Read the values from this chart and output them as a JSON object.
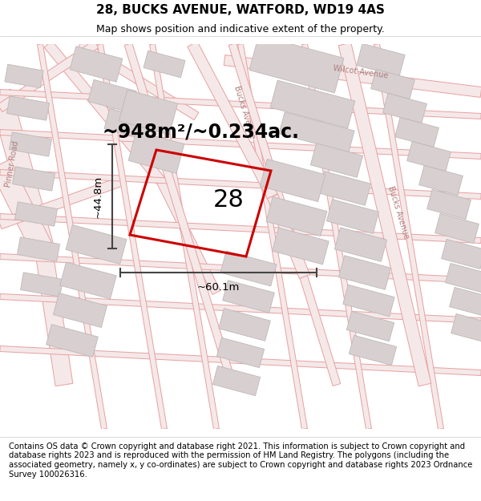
{
  "title": "28, BUCKS AVENUE, WATFORD, WD19 4AS",
  "subtitle": "Map shows position and indicative extent of the property.",
  "area_label": "~948m²/~0.234ac.",
  "number_label": "28",
  "dim_width": "~60.1m",
  "dim_height": "~44.8m",
  "footer": "Contains OS data © Crown copyright and database right 2021. This information is subject to Crown copyright and database rights 2023 and is reproduced with the permission of HM Land Registry. The polygons (including the associated geometry, namely x, y co-ordinates) are subject to Crown copyright and database rights 2023 Ordnance Survey 100026316.",
  "road_line_color": "#e8a0a0",
  "road_fill_color": "#f5e8e8",
  "building_color": "#d8d0d0",
  "building_edge_color": "#c0b8b8",
  "plot_line_color": "#cc0000",
  "dim_line_color": "#444444",
  "text_label_color": "#b08080",
  "bg_color": "#faf5f5",
  "title_fontsize": 11,
  "subtitle_fontsize": 9,
  "area_fontsize": 17,
  "number_fontsize": 22,
  "dim_fontsize": 9.5,
  "footer_fontsize": 7.2,
  "road_label_fontsize": 7
}
